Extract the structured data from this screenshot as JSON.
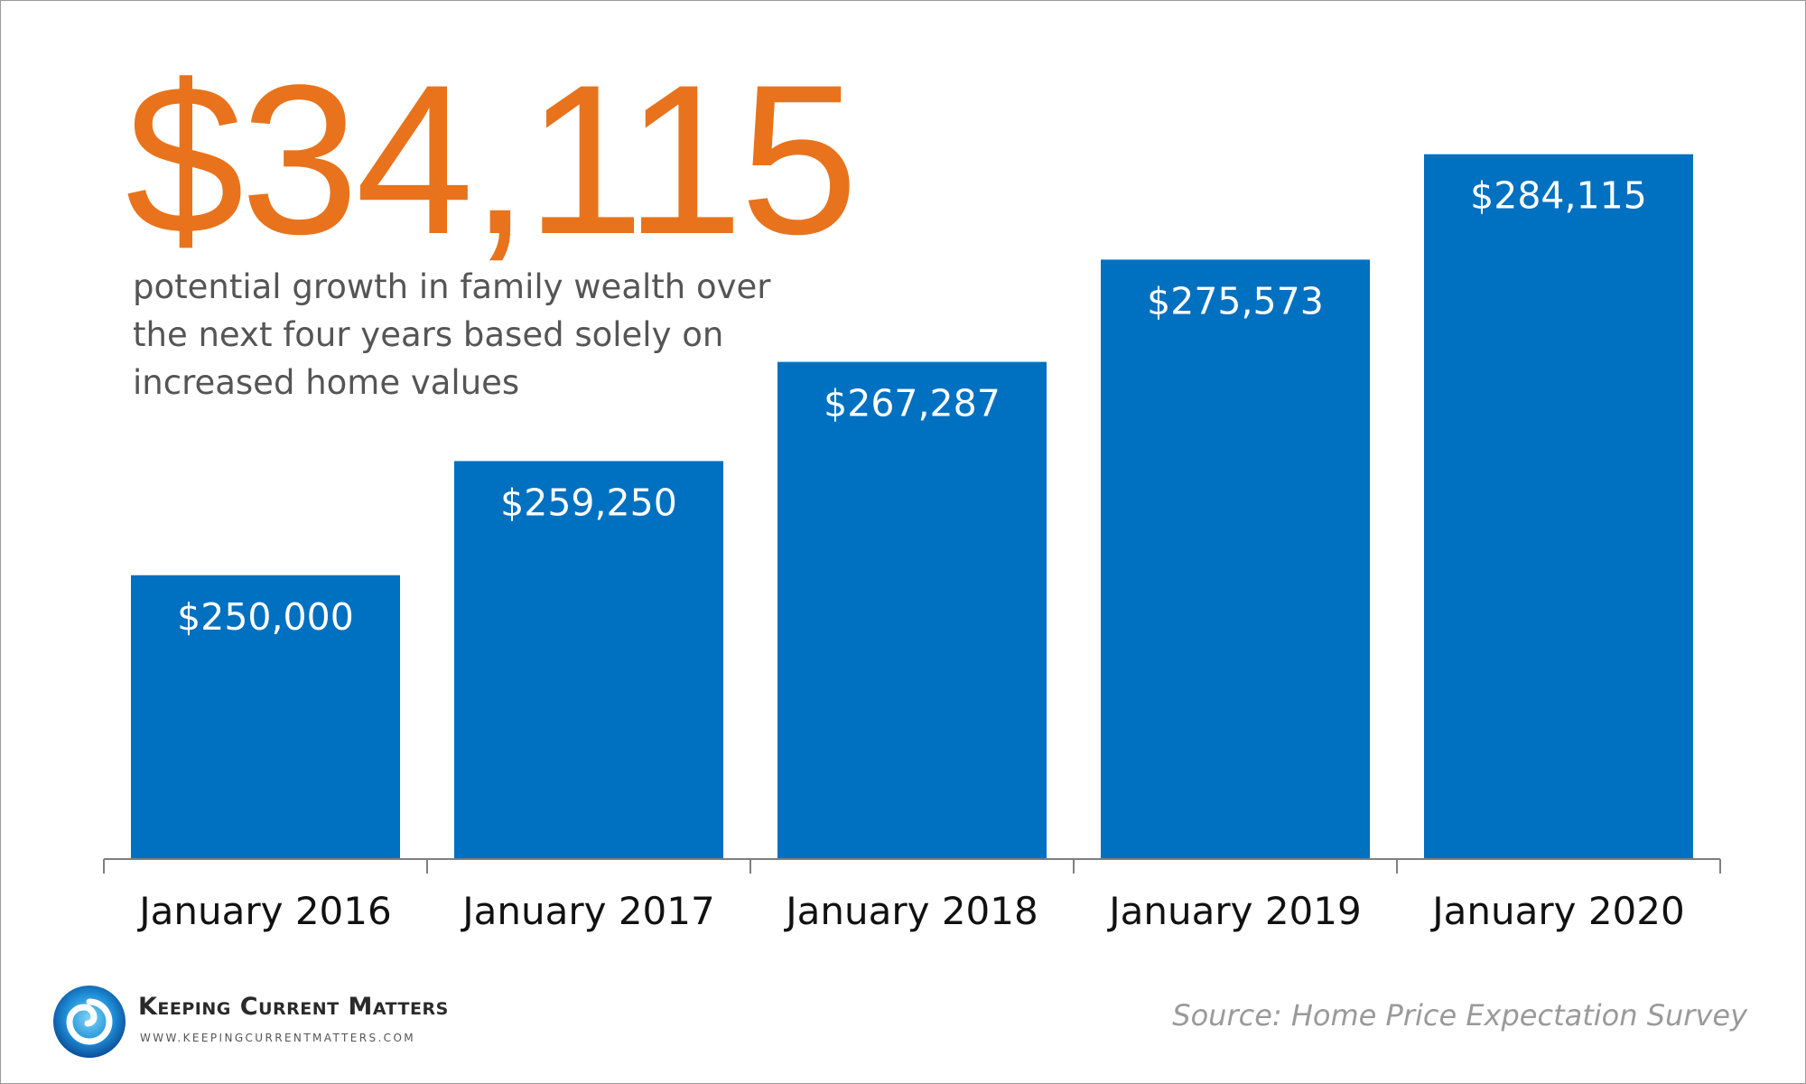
{
  "headline": "$34,115",
  "subtitle": "potential growth in family wealth over the next four years based solely on increased home values",
  "source": "Source: Home Price Expectation Survey",
  "logo": {
    "name": "Keeping Current Matters",
    "url": "WWW.KEEPINGCURRENTMATTERS.COM",
    "icon": "swirl-logo-icon"
  },
  "colors": {
    "headline": "#e8731c",
    "bar": "#0070c0",
    "axis": "#7f7f7f",
    "source": "#9a9a9a"
  },
  "chart_data": {
    "type": "bar",
    "title": "",
    "xlabel": "",
    "ylabel": "",
    "categories": [
      "January 2016",
      "January 2017",
      "January 2018",
      "January 2019",
      "January 2020"
    ],
    "values": [
      250000,
      259250,
      267287,
      275573,
      284115
    ],
    "value_labels": [
      "$250,000",
      "$259,250",
      "$267,287",
      "$275,573",
      "$284,115"
    ],
    "ylim": [
      227000,
      292000
    ],
    "grid": false,
    "legend": "none"
  }
}
